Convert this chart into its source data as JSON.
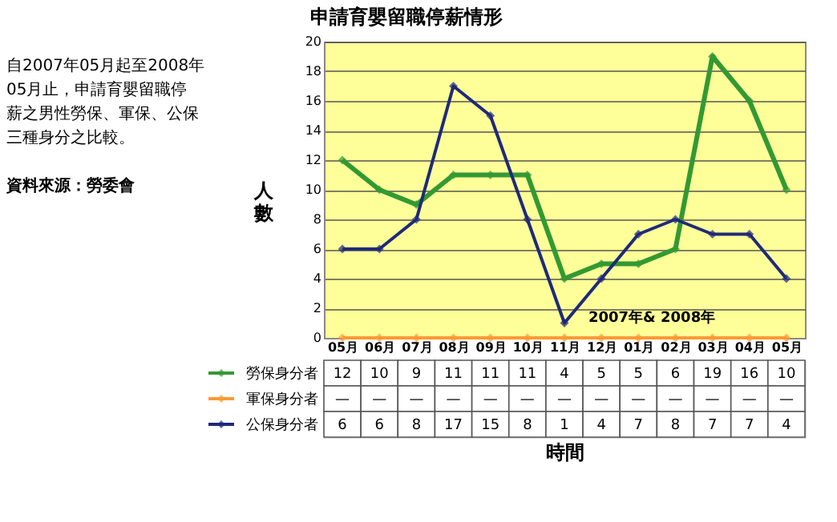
{
  "chart_data": {
    "type": "line",
    "title": "申請育嬰留職停薪情形",
    "xlabel": "時間",
    "ylabel": "人數",
    "categories": [
      "05月",
      "06月",
      "07月",
      "08月",
      "09月",
      "10月",
      "11月",
      "12月",
      "01月",
      "02月",
      "03月",
      "04月",
      "05月"
    ],
    "series": [
      {
        "name": "勞保身分者",
        "color": "#339933",
        "values": [
          12,
          10,
          9,
          11,
          11,
          11,
          4,
          5,
          5,
          6,
          19,
          16,
          10
        ]
      },
      {
        "name": "軍保身分者",
        "color": "#ff9933",
        "values": [
          0,
          0,
          0,
          0,
          0,
          0,
          0,
          0,
          0,
          0,
          0,
          0,
          0
        ],
        "value_labels": [
          "—",
          "—",
          "—",
          "—",
          "—",
          "—",
          "—",
          "—",
          "—",
          "—",
          "—",
          "—",
          "—"
        ]
      },
      {
        "name": "公保身分者",
        "color": "#1f2a7a",
        "values": [
          6,
          6,
          8,
          17,
          15,
          8,
          1,
          4,
          7,
          8,
          7,
          7,
          4
        ]
      }
    ],
    "ylim": [
      0,
      20
    ],
    "yticks": [
      0,
      2,
      4,
      6,
      8,
      10,
      12,
      14,
      16,
      18,
      20
    ],
    "grid": "y",
    "legend": "bottom left",
    "marker": "diamond",
    "line_style": "solid",
    "data_labels": true,
    "annotations": [
      "2007年& 2008年",
      "自2007年05月起至2008年05月止，申請育嬰留職停薪之男性勞保、軍保、公保三種身分之比較。",
      "資料來源：勞委會"
    ]
  }
}
